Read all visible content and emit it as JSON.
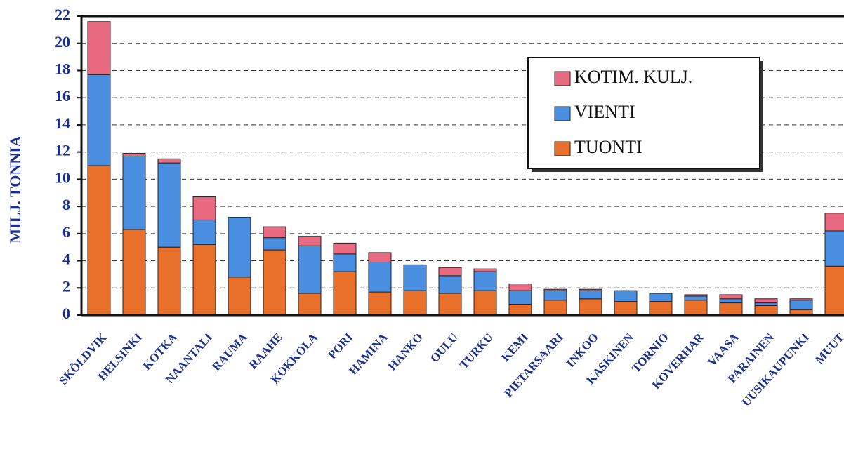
{
  "chart_data": {
    "type": "stacked_bar",
    "ylabel": "MILJ. TONNIA",
    "categories": [
      "SKÖLDVIK",
      "HELSINKI",
      "KOTKA",
      "NAANTALI",
      "RAUMA",
      "RAAHE",
      "KOKKOLA",
      "PORI",
      "HAMINA",
      "HANKO",
      "OULU",
      "TURKU",
      "KEMI",
      "PIETARSAARI",
      "INKOO",
      "KASKINEN",
      "TORNIO",
      "KOVERHAR",
      "VAASA",
      "PARAINEN",
      "UUSIKAUPUNKI",
      "MUUT"
    ],
    "series": [
      {
        "name": "TUONTI",
        "color": "#e8702a",
        "values": [
          11.0,
          6.3,
          5.0,
          5.2,
          2.8,
          4.8,
          1.6,
          3.2,
          1.7,
          1.8,
          1.6,
          1.8,
          0.8,
          1.1,
          1.2,
          1.0,
          1.0,
          1.1,
          0.9,
          0.7,
          0.4,
          3.6
        ]
      },
      {
        "name": "VIENTI",
        "color": "#4a8ee0",
        "values": [
          6.7,
          5.4,
          6.2,
          1.8,
          4.4,
          0.9,
          3.5,
          1.3,
          2.2,
          1.9,
          1.3,
          1.4,
          1.0,
          0.7,
          0.6,
          0.8,
          0.6,
          0.3,
          0.3,
          0.2,
          0.7,
          2.6
        ]
      },
      {
        "name": "KOTIM. KULJ.",
        "color": "#e86a80",
        "values": [
          3.9,
          0.2,
          0.3,
          1.7,
          0,
          0.8,
          0.7,
          0.8,
          0.7,
          0,
          0.6,
          0.2,
          0.5,
          0.1,
          0.1,
          0,
          0,
          0.1,
          0.3,
          0.3,
          0.1,
          1.3
        ]
      }
    ],
    "ylim": [
      0,
      22
    ],
    "yticks": [
      0,
      2,
      4,
      6,
      8,
      10,
      12,
      14,
      16,
      18,
      20,
      22
    ],
    "grid": true
  }
}
